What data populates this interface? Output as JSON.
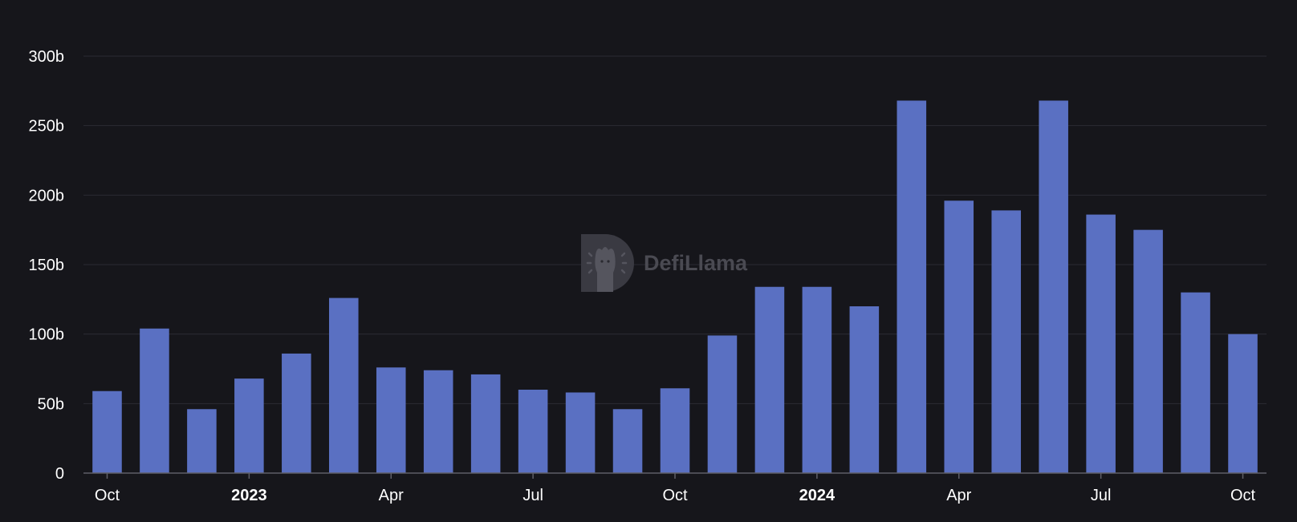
{
  "colors": {
    "background": "#16161b",
    "bar": "#5a70c2",
    "grid": "#2b2b33",
    "axis": "#5f5f68",
    "label": "#ffffff",
    "watermark": "#4a4a52"
  },
  "watermark": {
    "text": "DefiLlama",
    "icon": "llama-logo-icon"
  },
  "chart_data": {
    "type": "bar",
    "title": "",
    "xlabel": "",
    "ylabel": "",
    "categories": [
      "2022-10",
      "2022-11",
      "2022-12",
      "2023-01",
      "2023-02",
      "2023-03",
      "2023-04",
      "2023-05",
      "2023-06",
      "2023-07",
      "2023-08",
      "2023-09",
      "2023-10",
      "2023-11",
      "2023-12",
      "2024-01",
      "2024-02",
      "2024-03",
      "2024-04",
      "2024-05",
      "2024-06",
      "2024-07",
      "2024-08",
      "2024-09",
      "2024-10"
    ],
    "values": [
      59,
      104,
      46,
      68,
      86,
      126,
      76,
      74,
      71,
      60,
      58,
      46,
      61,
      99,
      134,
      134,
      120,
      268,
      196,
      189,
      268,
      186,
      175,
      130,
      100
    ],
    "ylim": [
      0,
      300
    ],
    "yticks": [
      {
        "value": 0,
        "label": "0"
      },
      {
        "value": 50,
        "label": "50b"
      },
      {
        "value": 100,
        "label": "100b"
      },
      {
        "value": 150,
        "label": "150b"
      },
      {
        "value": 200,
        "label": "200b"
      },
      {
        "value": 250,
        "label": "250b"
      },
      {
        "value": 300,
        "label": "300b"
      }
    ],
    "xticks": [
      {
        "index": 0,
        "label": "Oct",
        "bold": false
      },
      {
        "index": 3,
        "label": "2023",
        "bold": true
      },
      {
        "index": 6,
        "label": "Apr",
        "bold": false
      },
      {
        "index": 9,
        "label": "Jul",
        "bold": false
      },
      {
        "index": 12,
        "label": "Oct",
        "bold": false
      },
      {
        "index": 15,
        "label": "2024",
        "bold": true
      },
      {
        "index": 18,
        "label": "Apr",
        "bold": false
      },
      {
        "index": 21,
        "label": "Jul",
        "bold": false
      },
      {
        "index": 24,
        "label": "Oct",
        "bold": false
      }
    ],
    "grid": true,
    "legend": "none"
  }
}
